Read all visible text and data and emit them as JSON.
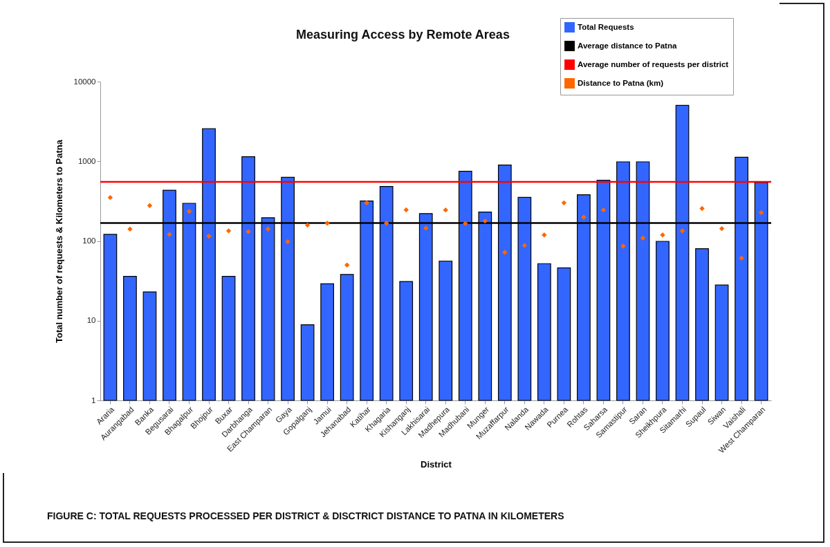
{
  "chart_data": {
    "type": "bar",
    "title": "Measuring Access by Remote Areas",
    "xlabel": "District",
    "ylabel": "Total number of requests & Kilometers to Patna",
    "categories": [
      "Araria",
      "Aurangabad",
      "Banka",
      "Begusarai",
      "Bhagalpur",
      "Bhojpur",
      "Buxar",
      "Darbhanga",
      "East Champaran",
      "Gaya",
      "Gopalganj",
      "Jamui",
      "Jehanabad",
      "Katihar",
      "Khagaria",
      "Kishanganj",
      "Lakhisarai",
      "Madhepura",
      "Madhubani",
      "Munger",
      "Muzaffarpur",
      "Nalanda",
      "Nawada",
      "Purnea",
      "Rohtas",
      "Saharsa",
      "Samastipur",
      "Saran",
      "Sheikhpura",
      "Sitamarhi",
      "Supaul",
      "Siwan",
      "Vaishali",
      "West Champaran"
    ],
    "series": [
      {
        "name": "Total Requests",
        "color": "#3366ff",
        "values": [
          121,
          36,
          23,
          434,
          297,
          2570,
          36,
          1140,
          196,
          630,
          8.9,
          29,
          38,
          318,
          483,
          31,
          221,
          56,
          750,
          231,
          897,
          353,
          52,
          46,
          380,
          578,
          985,
          985,
          99,
          5030,
          80,
          28,
          1125,
          541
        ]
      },
      {
        "name": "Distance to Patna (km)",
        "type": "scatter",
        "color": "#ff6600",
        "values": [
          351,
          141,
          278,
          121,
          235,
          115,
          134,
          131,
          141,
          98,
          158,
          167,
          50,
          301,
          167,
          246,
          145,
          245,
          166,
          178,
          72,
          88,
          119,
          301,
          199,
          245,
          86,
          109,
          119,
          134,
          256,
          143,
          61,
          227
        ]
      }
    ],
    "ref_lines": [
      {
        "axis": "y",
        "value": 168,
        "label": "Average distance to Patna",
        "color": "#000000"
      },
      {
        "axis": "y",
        "value": 552,
        "label": "Average number of requests per district",
        "color": "#ff0000"
      }
    ],
    "log": true,
    "ylim": [
      1,
      10000
    ],
    "yticks": [
      1,
      10,
      100,
      1000,
      10000
    ],
    "grid": false,
    "legend": "top right",
    "marker": "diamond",
    "annotations": [
      "FIGURE C: TOTAL REQUESTS PROCESSED PER DISTRICT & DISCTRICT DISTANCE TO PATNA IN KILOMETERS"
    ]
  }
}
